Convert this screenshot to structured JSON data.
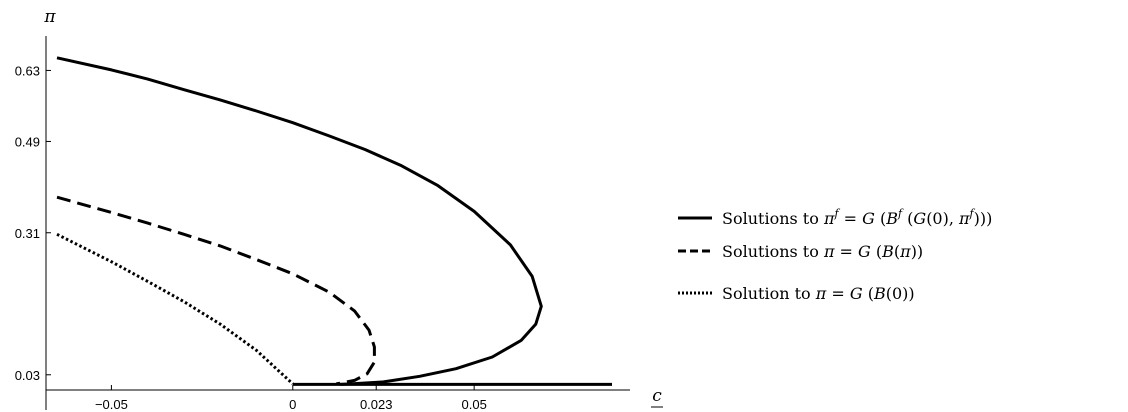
{
  "chart_data": {
    "type": "line",
    "title": "",
    "xlabel": "c",
    "ylabel": "π",
    "xlim": [
      -0.065,
      0.088
    ],
    "ylim": [
      0.0,
      0.69
    ],
    "x_ticks": [
      {
        "value": -0.05,
        "label": "−0.05"
      },
      {
        "value": 0.0,
        "label": "0"
      },
      {
        "value": 0.023,
        "label": "0.023"
      },
      {
        "value": 0.05,
        "label": "0.05"
      }
    ],
    "y_ticks": [
      {
        "value": 0.03,
        "label": "0.03"
      },
      {
        "value": 0.31,
        "label": "0.31"
      },
      {
        "value": 0.49,
        "label": "0.49"
      },
      {
        "value": 0.63,
        "label": "0.63"
      }
    ],
    "grid": false,
    "legend_position": "right",
    "series": [
      {
        "name": "Solutions to π^f = G(B^f(G(0), π^f))",
        "style": "solid",
        "points": [
          [
            -0.065,
            0.655
          ],
          [
            -0.05,
            0.631
          ],
          [
            -0.04,
            0.613
          ],
          [
            -0.03,
            0.592
          ],
          [
            -0.02,
            0.572
          ],
          [
            -0.01,
            0.55
          ],
          [
            0.0,
            0.527
          ],
          [
            0.01,
            0.501
          ],
          [
            0.02,
            0.474
          ],
          [
            0.03,
            0.442
          ],
          [
            0.04,
            0.403
          ],
          [
            0.05,
            0.352
          ],
          [
            0.06,
            0.286
          ],
          [
            0.066,
            0.224
          ],
          [
            0.0685,
            0.165
          ],
          [
            0.067,
            0.13
          ],
          [
            0.063,
            0.098
          ],
          [
            0.055,
            0.065
          ],
          [
            0.045,
            0.042
          ],
          [
            0.035,
            0.027
          ],
          [
            0.025,
            0.016
          ],
          [
            0.016,
            0.012
          ],
          [
            0.013,
            0.011
          ]
        ]
      },
      {
        "name": "Solutions to π = G(B(π))",
        "style": "dashed",
        "points": [
          [
            -0.065,
            0.38
          ],
          [
            -0.05,
            0.35
          ],
          [
            -0.04,
            0.329
          ],
          [
            -0.03,
            0.307
          ],
          [
            -0.02,
            0.284
          ],
          [
            -0.01,
            0.257
          ],
          [
            0.0,
            0.229
          ],
          [
            0.01,
            0.193
          ],
          [
            0.017,
            0.156
          ],
          [
            0.021,
            0.118
          ],
          [
            0.0225,
            0.085
          ],
          [
            0.0225,
            0.055
          ],
          [
            0.0205,
            0.032
          ],
          [
            0.017,
            0.019
          ],
          [
            0.012,
            0.012
          ]
        ]
      },
      {
        "name": "Solution to π = G(B(0))",
        "style": "dotted",
        "points": [
          [
            -0.065,
            0.307
          ],
          [
            -0.05,
            0.253
          ],
          [
            -0.04,
            0.214
          ],
          [
            -0.03,
            0.174
          ],
          [
            -0.02,
            0.13
          ],
          [
            -0.01,
            0.078
          ],
          [
            0.0,
            0.012
          ]
        ]
      },
      {
        "name": "",
        "style": "solid",
        "points": [
          [
            0.0,
            0.011
          ],
          [
            0.088,
            0.011
          ]
        ]
      }
    ]
  }
}
